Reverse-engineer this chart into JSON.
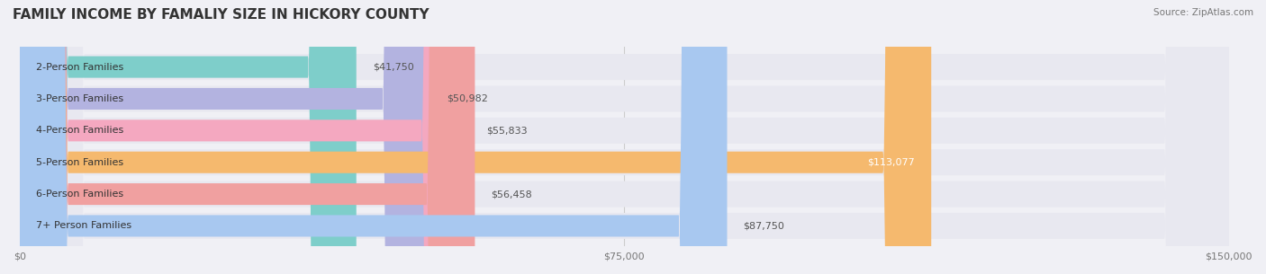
{
  "title": "FAMILY INCOME BY FAMALIY SIZE IN HICKORY COUNTY",
  "source": "Source: ZipAtlas.com",
  "categories": [
    "2-Person Families",
    "3-Person Families",
    "4-Person Families",
    "5-Person Families",
    "6-Person Families",
    "7+ Person Families"
  ],
  "values": [
    41750,
    50982,
    55833,
    113077,
    56458,
    87750
  ],
  "bar_colors": [
    "#7ececa",
    "#b3b3e0",
    "#f4a8c0",
    "#f5b96e",
    "#f0a0a0",
    "#a8c8f0"
  ],
  "label_colors": [
    "#555555",
    "#555555",
    "#555555",
    "#ffffff",
    "#555555",
    "#555555"
  ],
  "xlim": [
    0,
    150000
  ],
  "xticks": [
    0,
    75000,
    150000
  ],
  "xtick_labels": [
    "$0",
    "$75,000",
    "$150,000"
  ],
  "bg_color": "#f0f0f5",
  "bar_bg_color": "#e8e8f0",
  "title_fontsize": 11,
  "label_fontsize": 8,
  "value_fontsize": 8,
  "source_fontsize": 7.5
}
